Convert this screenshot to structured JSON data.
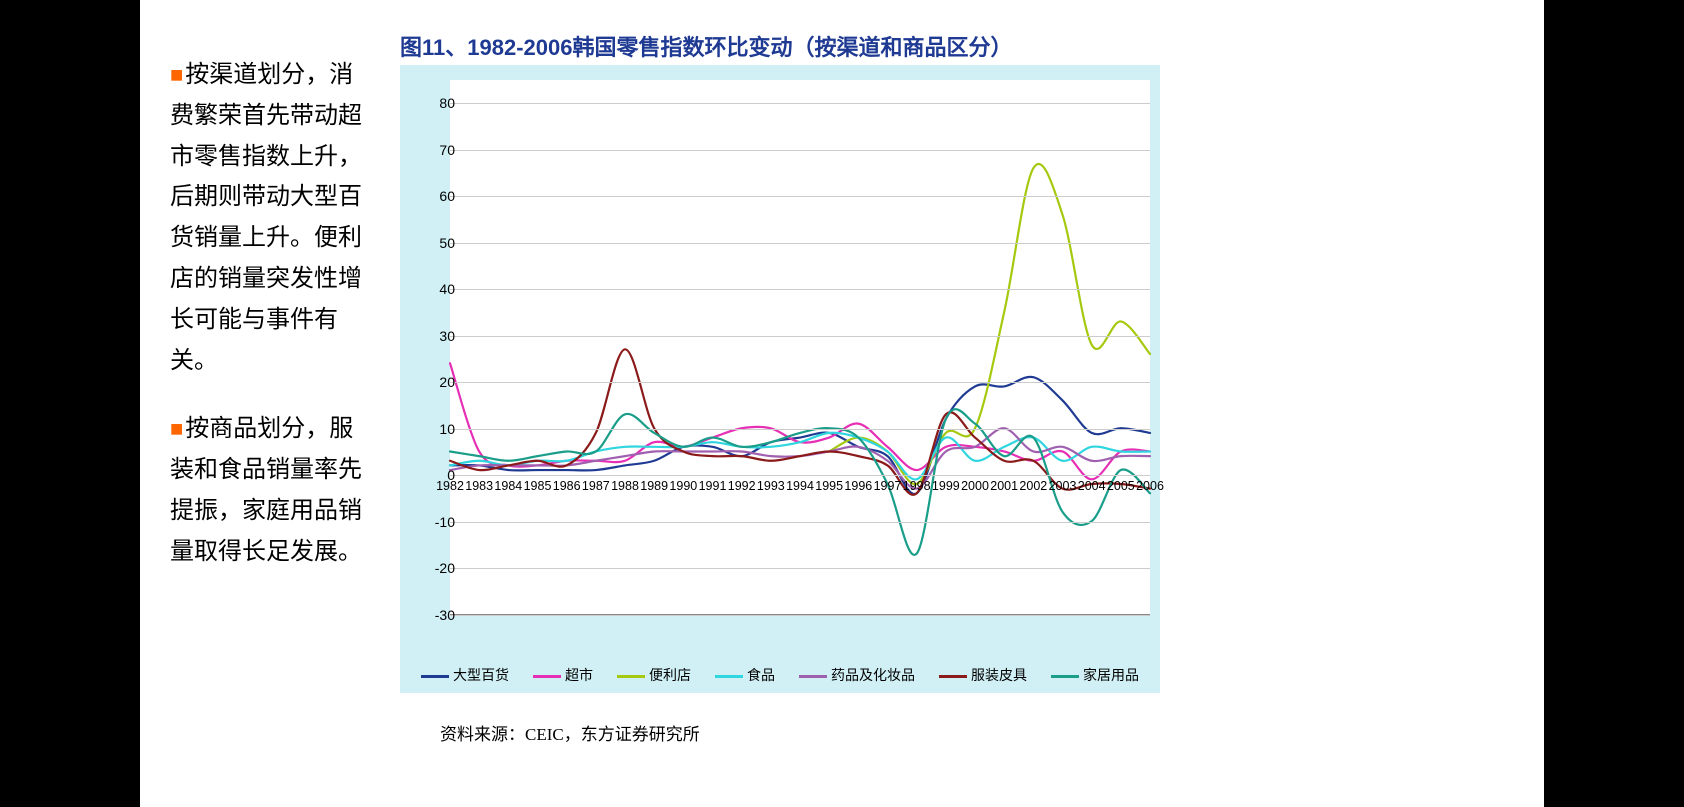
{
  "slide": {
    "title": "图11、1982-2006韩国零售指数环比变动（按渠道和商品区分）",
    "source": "资料来源：CEIC，东方证券研究所",
    "bullet_color": "#ff6600",
    "para1": "按渠道划分，消费繁荣首先带动超市零售指数上升，后期则带动大型百货销量上升。便利店的销量突发性增长可能与事件有关。",
    "para2": "按商品划分，服装和食品销量率先提振，家庭用品销量取得长足发展。"
  },
  "chart": {
    "type": "line",
    "background_color": "#d1f0f5",
    "plot_background": "#ffffff",
    "grid_color": "#cccccc",
    "x_categories": [
      "1982",
      "1983",
      "1984",
      "1985",
      "1986",
      "1987",
      "1988",
      "1989",
      "1990",
      "1991",
      "1992",
      "1993",
      "1994",
      "1995",
      "1996",
      "1997",
      "1998",
      "1999",
      "2000",
      "2001",
      "2002",
      "2003",
      "2004",
      "2005",
      "2006"
    ],
    "y_ticks": [
      -30,
      -20,
      -10,
      0,
      10,
      20,
      30,
      40,
      50,
      60,
      70,
      80
    ],
    "ylim": [
      -30,
      85
    ],
    "line_width": 2.2,
    "series": [
      {
        "name": "大型百货",
        "label": "大型百货",
        "color": "#1f3a93",
        "values": [
          2,
          2,
          1,
          1,
          1,
          1,
          2,
          3,
          6,
          6,
          4,
          7,
          8,
          9,
          6,
          4,
          -4,
          12,
          19,
          19,
          21,
          16,
          9,
          10,
          9
        ]
      },
      {
        "name": "超市",
        "label": "超市",
        "color": "#e62fb5",
        "values": [
          24,
          5,
          2,
          2,
          3,
          3,
          3,
          7,
          6,
          8,
          10,
          10,
          7,
          8,
          11,
          6,
          1,
          6,
          6,
          5,
          3,
          5,
          -1,
          5,
          5
        ]
      },
      {
        "name": "便利店",
        "label": "便利店",
        "color": "#a5c90f",
        "values": [
          null,
          null,
          null,
          null,
          null,
          null,
          null,
          null,
          null,
          null,
          null,
          null,
          null,
          5,
          8,
          5,
          -2,
          9,
          10,
          35,
          66,
          56,
          28,
          33,
          26
        ]
      },
      {
        "name": "食品",
        "label": "食品",
        "color": "#2fd6e0",
        "values": [
          2,
          3,
          2,
          3,
          3,
          5,
          6,
          6,
          6,
          7,
          6,
          6,
          7,
          9,
          8,
          5,
          -1,
          8,
          3,
          6,
          8,
          3,
          6,
          5,
          5
        ]
      },
      {
        "name": "药品及化妆品",
        "label": "药品及化妆品",
        "color": "#a060b0",
        "values": [
          1,
          2,
          2,
          2,
          2,
          3,
          4,
          5,
          5,
          5,
          5,
          4,
          4,
          5,
          6,
          3,
          -3,
          5,
          6,
          10,
          5,
          6,
          3,
          4,
          4
        ]
      },
      {
        "name": "服装皮具",
        "label": "服装皮具",
        "color": "#8b1a1a",
        "values": [
          3,
          1,
          2,
          3,
          2,
          9,
          27,
          10,
          5,
          4,
          4,
          3,
          4,
          5,
          4,
          2,
          -4,
          13,
          8,
          3,
          3,
          -3,
          -2,
          -2,
          -3
        ]
      },
      {
        "name": "家居用品",
        "label": "家居用品",
        "color": "#1a9e8a",
        "values": [
          5,
          4,
          3,
          4,
          5,
          5,
          13,
          9,
          6,
          8,
          6,
          7,
          9,
          10,
          8,
          -2,
          -17,
          12,
          11,
          4,
          8,
          -8,
          -10,
          1,
          -4
        ]
      }
    ]
  }
}
